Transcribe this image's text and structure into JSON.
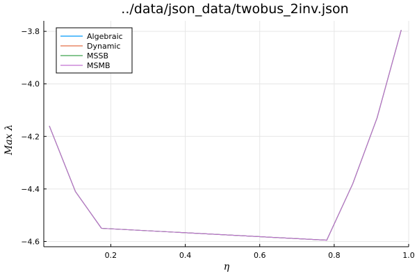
{
  "chart_data": {
    "type": "line",
    "title": "../data/json_data/twobus_2inv.json",
    "xlabel": "η",
    "ylabel": "Max λ",
    "xlim": [
      0.02,
      1.0
    ],
    "ylim": [
      -4.62,
      -3.76
    ],
    "xticks": [
      0.2,
      0.4,
      0.6,
      0.8,
      1.0
    ],
    "xtick_labels": [
      "0.2",
      "0.4",
      "0.6",
      "0.8",
      "1.0"
    ],
    "yticks": [
      -4.6,
      -4.4,
      -4.2,
      -4.0,
      -3.8
    ],
    "ytick_labels": [
      "−4.6",
      "−4.4",
      "−4.2",
      "−4.0",
      "−3.8"
    ],
    "grid": true,
    "legend_position": "top-left",
    "x": [
      0.035,
      0.105,
      0.175,
      0.78,
      0.85,
      0.915,
      0.98
    ],
    "series": [
      {
        "name": "Algebraic",
        "color": "#009AFA",
        "values": [
          -4.16,
          -4.41,
          -4.55,
          -4.595,
          -4.38,
          -4.13,
          -3.795
        ]
      },
      {
        "name": "Dynamic",
        "color": "#E36F47",
        "values": [
          -4.16,
          -4.41,
          -4.55,
          -4.595,
          -4.38,
          -4.13,
          -3.795
        ]
      },
      {
        "name": "MSSB",
        "color": "#3EA44E",
        "values": [
          -4.16,
          -4.41,
          -4.55,
          -4.595,
          -4.38,
          -4.13,
          -3.795
        ]
      },
      {
        "name": "MSMB",
        "color": "#C271D2",
        "values": [
          -4.16,
          -4.41,
          -4.55,
          -4.595,
          -4.38,
          -4.13,
          -3.795
        ]
      }
    ]
  }
}
